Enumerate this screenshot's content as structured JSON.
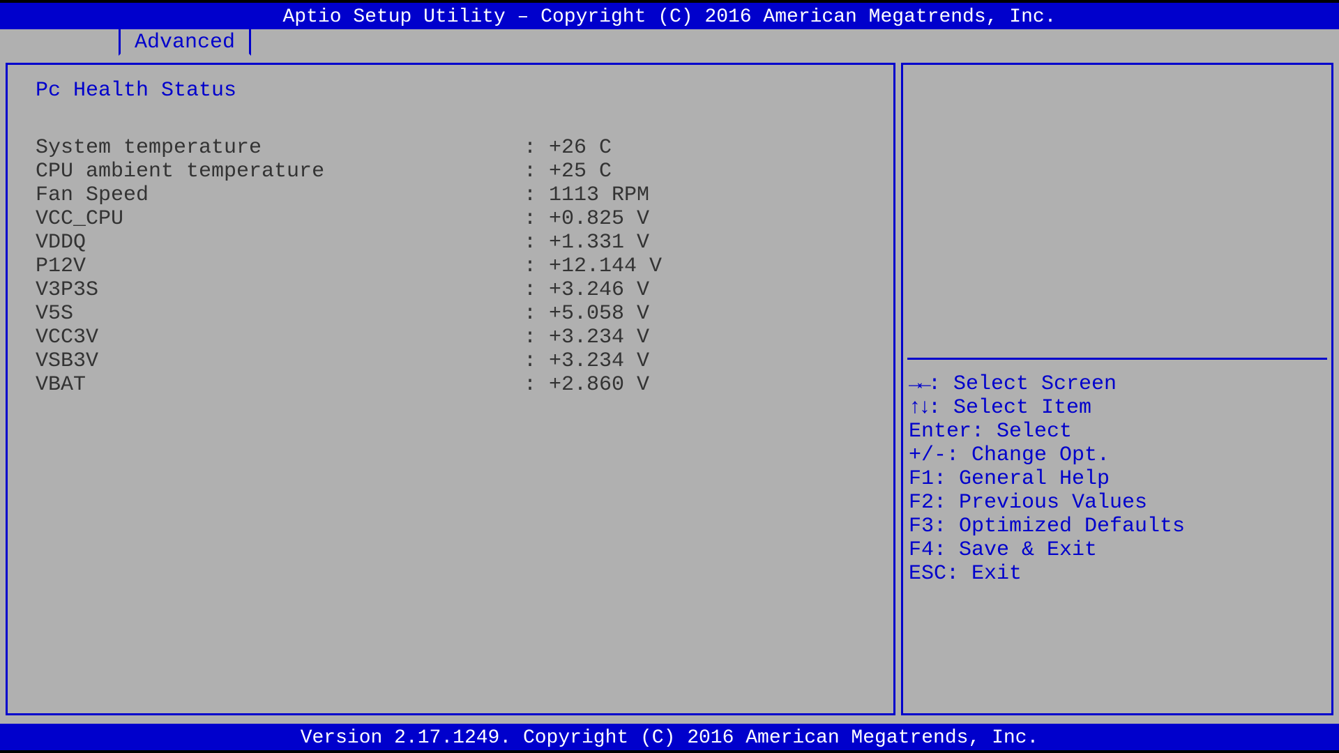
{
  "header": {
    "title": "Aptio Setup Utility – Copyright (C) 2016 American Megatrends, Inc."
  },
  "tab": {
    "label": "Advanced"
  },
  "section": {
    "title": "Pc Health Status"
  },
  "status": {
    "items": [
      {
        "label": "System temperature",
        "value": "+26 C"
      },
      {
        "label": "CPU ambient temperature",
        "value": "+25 C"
      },
      {
        "label": "Fan Speed",
        "value": "1113 RPM"
      },
      {
        "label": "VCC_CPU",
        "value": "+0.825 V"
      },
      {
        "label": "VDDQ",
        "value": "+1.331 V"
      },
      {
        "label": "P12V",
        "value": "+12.144 V"
      },
      {
        "label": "V3P3S",
        "value": "+3.246 V"
      },
      {
        "label": "V5S",
        "value": "+5.058 V"
      },
      {
        "label": "VCC3V",
        "value": "+3.234 V"
      },
      {
        "label": "VSB3V",
        "value": "+3.234 V"
      },
      {
        "label": "VBAT",
        "value": "+2.860 V"
      }
    ]
  },
  "help": {
    "lines": [
      {
        "icon": "→←",
        "text": ": Select Screen"
      },
      {
        "icon": "↑↓",
        "text": ": Select Item"
      },
      {
        "icon": "",
        "text": "Enter: Select"
      },
      {
        "icon": "",
        "text": "+/-: Change Opt."
      },
      {
        "icon": "",
        "text": "F1: General Help"
      },
      {
        "icon": "",
        "text": "F2: Previous Values"
      },
      {
        "icon": "",
        "text": "F3: Optimized Defaults"
      },
      {
        "icon": "",
        "text": "F4: Save & Exit"
      },
      {
        "icon": "",
        "text": "ESC: Exit"
      }
    ]
  },
  "footer": {
    "text": "Version 2.17.1249. Copyright (C) 2016 American Megatrends, Inc."
  },
  "colors": {
    "bios_blue": "#0000cc",
    "bios_gray": "#b0b0b0",
    "text_dark": "#333333",
    "text_white": "#ffffff"
  }
}
